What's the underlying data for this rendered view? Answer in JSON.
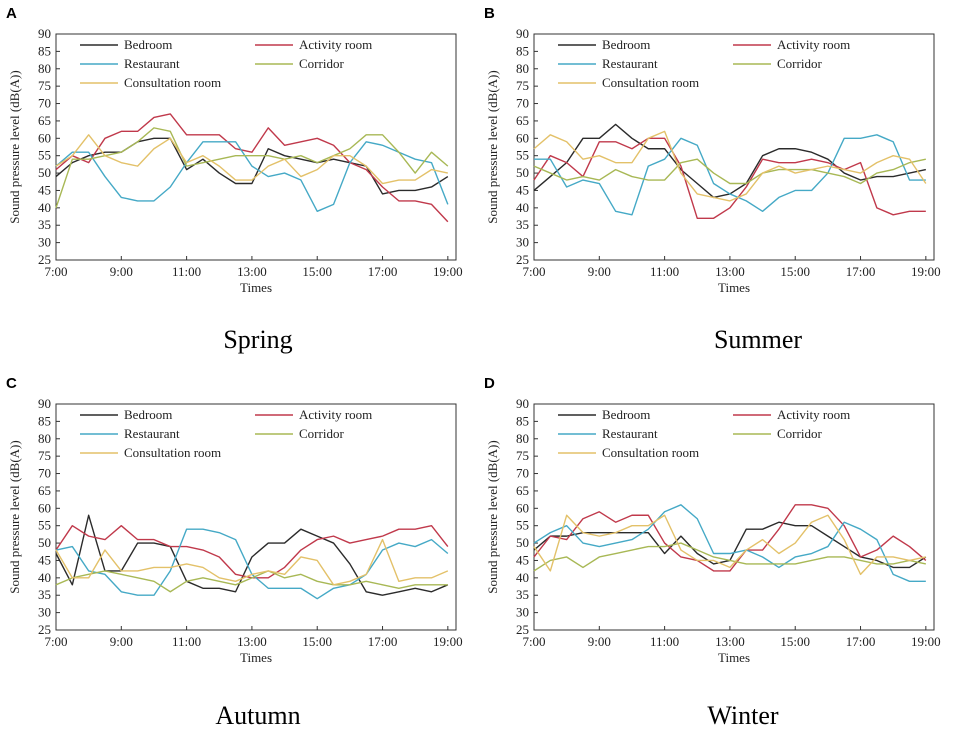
{
  "chart_data": [
    {
      "type": "line",
      "panel_label": "A",
      "title": "Spring",
      "xlabel": "Times",
      "ylabel": "Sound pressure level (dB(A))",
      "ylim": [
        25,
        90
      ],
      "yticks": [
        25,
        30,
        35,
        40,
        45,
        50,
        55,
        60,
        65,
        70,
        75,
        80,
        85,
        90
      ],
      "xlim": [
        7,
        19.25
      ],
      "xticks": [
        7,
        9,
        11,
        13,
        15,
        17,
        19
      ],
      "xtick_labels": [
        "7:00",
        "9:00",
        "11:00",
        "13:00",
        "15:00",
        "17:00",
        "19:00"
      ],
      "x": [
        7.0,
        7.5,
        8.0,
        8.5,
        9.0,
        9.5,
        10.0,
        10.5,
        11.0,
        11.5,
        12.0,
        12.5,
        13.0,
        13.5,
        14.0,
        14.5,
        15.0,
        15.5,
        16.0,
        16.5,
        17.0,
        17.5,
        18.0,
        18.5,
        19.0
      ],
      "series": [
        {
          "name": "Bedroom",
          "color": "#2b2b2b",
          "values": [
            49,
            53,
            55,
            56,
            56,
            59,
            60,
            60,
            51,
            54,
            50,
            47,
            47,
            57,
            55,
            54,
            53,
            54,
            53,
            52,
            44,
            45,
            45,
            46,
            49
          ]
        },
        {
          "name": "Activity room",
          "color": "#c0394b",
          "values": [
            51,
            55,
            53,
            60,
            62,
            62,
            66,
            67,
            61,
            61,
            61,
            57,
            56,
            63,
            58,
            59,
            60,
            58,
            53,
            51,
            46,
            42,
            42,
            41,
            36
          ]
        },
        {
          "name": "Restaurant",
          "color": "#45a9c6",
          "values": [
            52,
            56,
            56,
            49,
            43,
            42,
            42,
            46,
            53,
            59,
            59,
            59,
            52,
            49,
            50,
            48,
            39,
            41,
            53,
            59,
            58,
            56,
            54,
            53,
            41
          ]
        },
        {
          "name": "Corridor",
          "color": "#a8b855",
          "values": [
            40,
            54,
            54,
            55,
            56,
            59,
            63,
            62,
            52,
            53,
            54,
            55,
            55,
            55,
            54,
            55,
            53,
            55,
            57,
            61,
            61,
            56,
            50,
            56,
            52
          ]
        },
        {
          "name": "Consultation room",
          "color": "#e3c169",
          "values": [
            52,
            55,
            61,
            55,
            53,
            52,
            57,
            60,
            53,
            55,
            52,
            48,
            48,
            52,
            54,
            49,
            51,
            55,
            55,
            52,
            47,
            48,
            48,
            51,
            50
          ]
        }
      ]
    },
    {
      "type": "line",
      "panel_label": "B",
      "title": "Summer",
      "xlabel": "Times",
      "ylabel": "Sound pressure level (dB(A))",
      "ylim": [
        25,
        90
      ],
      "yticks": [
        25,
        30,
        35,
        40,
        45,
        50,
        55,
        60,
        65,
        70,
        75,
        80,
        85,
        90
      ],
      "xlim": [
        7,
        19.25
      ],
      "xticks": [
        7,
        9,
        11,
        13,
        15,
        17,
        19
      ],
      "xtick_labels": [
        "7:00",
        "9:00",
        "11:00",
        "13:00",
        "15:00",
        "17:00",
        "19:00"
      ],
      "x": [
        7.0,
        7.5,
        8.0,
        8.5,
        9.0,
        9.5,
        10.0,
        10.5,
        11.0,
        11.5,
        12.0,
        12.5,
        13.0,
        13.5,
        14.0,
        14.5,
        15.0,
        15.5,
        16.0,
        16.5,
        17.0,
        17.5,
        18.0,
        18.5,
        19.0
      ],
      "series": [
        {
          "name": "Bedroom",
          "color": "#2b2b2b",
          "values": [
            45,
            49,
            53,
            60,
            60,
            64,
            60,
            57,
            57,
            51,
            47,
            43,
            44,
            47,
            55,
            57,
            57,
            56,
            54,
            50,
            48,
            49,
            49,
            50,
            51
          ]
        },
        {
          "name": "Activity room",
          "color": "#c0394b",
          "values": [
            48,
            55,
            53,
            49,
            59,
            59,
            57,
            60,
            60,
            52,
            37,
            37,
            40,
            46,
            54,
            53,
            53,
            54,
            53,
            51,
            53,
            40,
            38,
            39,
            39
          ]
        },
        {
          "name": "Restaurant",
          "color": "#45a9c6",
          "values": [
            54,
            54,
            46,
            48,
            47,
            39,
            38,
            52,
            54,
            60,
            58,
            47,
            44,
            42,
            39,
            43,
            45,
            45,
            50,
            60,
            60,
            61,
            59,
            48,
            48
          ]
        },
        {
          "name": "Corridor",
          "color": "#a8b855",
          "values": [
            52,
            50,
            48,
            49,
            48,
            51,
            49,
            48,
            48,
            53,
            54,
            50,
            47,
            47,
            50,
            51,
            51,
            51,
            50,
            49,
            47,
            50,
            51,
            53,
            54
          ]
        },
        {
          "name": "Consultation room",
          "color": "#e3c169",
          "values": [
            57,
            61,
            59,
            54,
            55,
            53,
            53,
            60,
            62,
            50,
            44,
            43,
            42,
            44,
            50,
            52,
            50,
            51,
            52,
            51,
            50,
            53,
            55,
            54,
            47
          ]
        }
      ]
    },
    {
      "type": "line",
      "panel_label": "C",
      "title": "Autumn",
      "xlabel": "Times",
      "ylabel": "Sound pressure level  (dB(A))",
      "ylim": [
        25,
        90
      ],
      "yticks": [
        25,
        30,
        35,
        40,
        45,
        50,
        55,
        60,
        65,
        70,
        75,
        80,
        85,
        90
      ],
      "xlim": [
        7,
        19.25
      ],
      "xticks": [
        7,
        9,
        11,
        13,
        15,
        17,
        19
      ],
      "xtick_labels": [
        "7:00",
        "9:00",
        "11:00",
        "13:00",
        "15:00",
        "17:00",
        "19:00"
      ],
      "x": [
        7.0,
        7.5,
        8.0,
        8.5,
        9.0,
        9.5,
        10.0,
        10.5,
        11.0,
        11.5,
        12.0,
        12.5,
        13.0,
        13.5,
        14.0,
        14.5,
        15.0,
        15.5,
        16.0,
        16.5,
        17.0,
        17.5,
        18.0,
        18.5,
        19.0
      ],
      "series": [
        {
          "name": "Bedroom",
          "color": "#2b2b2b",
          "values": [
            47,
            38,
            58,
            42,
            42,
            50,
            50,
            49,
            39,
            37,
            37,
            36,
            46,
            50,
            50,
            54,
            52,
            50,
            44,
            36,
            35,
            36,
            37,
            36,
            38
          ]
        },
        {
          "name": "Activity room",
          "color": "#c0394b",
          "values": [
            48,
            55,
            52,
            51,
            55,
            51,
            51,
            49,
            49,
            48,
            46,
            41,
            40,
            40,
            43,
            48,
            51,
            52,
            50,
            51,
            52,
            54,
            54,
            55,
            49
          ]
        },
        {
          "name": "Restaurant",
          "color": "#45a9c6",
          "values": [
            48,
            49,
            42,
            41,
            36,
            35,
            35,
            42,
            54,
            54,
            53,
            51,
            41,
            37,
            37,
            37,
            34,
            37,
            38,
            41,
            48,
            50,
            49,
            51,
            47
          ]
        },
        {
          "name": "Corridor",
          "color": "#a8b855",
          "values": [
            38,
            40,
            41,
            42,
            41,
            40,
            39,
            36,
            39,
            40,
            39,
            38,
            40,
            42,
            40,
            41,
            39,
            38,
            38,
            39,
            38,
            37,
            38,
            38,
            38
          ]
        },
        {
          "name": "Consultation room",
          "color": "#e3c169",
          "values": [
            48,
            40,
            40,
            48,
            42,
            42,
            43,
            43,
            44,
            43,
            40,
            39,
            41,
            42,
            41,
            46,
            45,
            38,
            39,
            41,
            51,
            39,
            40,
            40,
            42
          ]
        }
      ]
    },
    {
      "type": "line",
      "panel_label": "D",
      "title": "Winter",
      "xlabel": "Times",
      "ylabel": "Sound pressure level  (dB(A))",
      "ylim": [
        25,
        90
      ],
      "yticks": [
        25,
        30,
        35,
        40,
        45,
        50,
        55,
        60,
        65,
        70,
        75,
        80,
        85,
        90
      ],
      "xlim": [
        7,
        19.25
      ],
      "xticks": [
        7,
        9,
        11,
        13,
        15,
        17,
        19
      ],
      "xtick_labels": [
        "7:00",
        "9:00",
        "11:00",
        "13:00",
        "15:00",
        "17:00",
        "19:00"
      ],
      "x": [
        7.0,
        7.5,
        8.0,
        8.5,
        9.0,
        9.5,
        10.0,
        10.5,
        11.0,
        11.5,
        12.0,
        12.5,
        13.0,
        13.5,
        14.0,
        14.5,
        15.0,
        15.5,
        16.0,
        16.5,
        17.0,
        17.5,
        18.0,
        18.5,
        19.0
      ],
      "series": [
        {
          "name": "Bedroom",
          "color": "#2b2b2b",
          "values": [
            48,
            52,
            52,
            53,
            53,
            53,
            53,
            53,
            47,
            52,
            47,
            44,
            45,
            54,
            54,
            56,
            55,
            55,
            52,
            49,
            46,
            45,
            43,
            43,
            46
          ]
        },
        {
          "name": "Activity room",
          "color": "#c0394b",
          "values": [
            46,
            52,
            51,
            57,
            59,
            56,
            58,
            58,
            50,
            46,
            45,
            42,
            42,
            48,
            48,
            54,
            61,
            61,
            60,
            55,
            46,
            48,
            52,
            49,
            45
          ]
        },
        {
          "name": "Restaurant",
          "color": "#45a9c6",
          "values": [
            50,
            53,
            55,
            50,
            49,
            50,
            51,
            54,
            59,
            61,
            57,
            47,
            47,
            48,
            46,
            43,
            46,
            47,
            49,
            56,
            54,
            51,
            41,
            39,
            39
          ]
        },
        {
          "name": "Corridor",
          "color": "#a8b855",
          "values": [
            42,
            45,
            46,
            43,
            46,
            47,
            48,
            49,
            49,
            50,
            48,
            46,
            45,
            44,
            44,
            44,
            44,
            45,
            46,
            46,
            45,
            44,
            44,
            45,
            44
          ]
        },
        {
          "name": "Consultation room",
          "color": "#e3c169",
          "values": [
            49,
            42,
            58,
            53,
            52,
            53,
            55,
            55,
            58,
            48,
            45,
            45,
            43,
            48,
            51,
            47,
            50,
            56,
            58,
            51,
            41,
            46,
            46,
            45,
            46
          ]
        }
      ]
    }
  ]
}
